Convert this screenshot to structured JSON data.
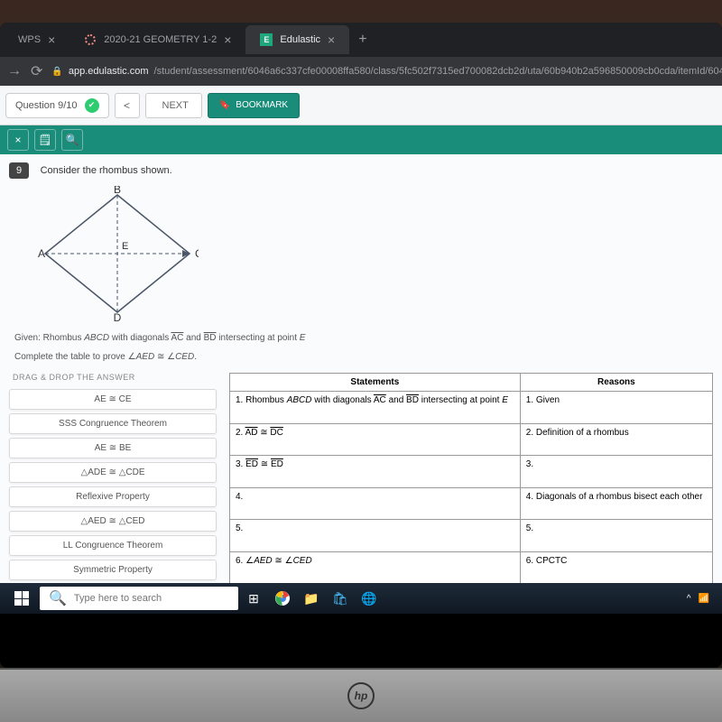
{
  "browser": {
    "tabs": [
      {
        "label": "WPS",
        "active": false
      },
      {
        "label": "2020-21 GEOMETRY 1-2",
        "active": false,
        "favicon": "red-circle"
      },
      {
        "label": "Edulastic",
        "active": true,
        "favicon": "e-green"
      }
    ],
    "url_domain": "app.edulastic.com",
    "url_path": "/student/assessment/6046a6c337cfe00008ffa580/class/5fc502f7315ed700082dcb2d/uta/60b940b2a596850009cb0cda/itemId/6046a6c4"
  },
  "toolbar": {
    "question_counter": "Question 9/10",
    "badge": "①",
    "prev": "<",
    "next_label": "NEXT",
    "bookmark_label": "BOOKMARK",
    "calculator_icon": "calculator-icon",
    "search_icon": "search-icon",
    "close_icon": "×"
  },
  "question": {
    "number": "9",
    "prompt": "Consider the rhombus shown.",
    "diagram": {
      "type": "rhombus",
      "vertices": {
        "top": "B",
        "right": "C",
        "bottom": "D",
        "left": "A",
        "center": "E"
      },
      "line_color": "#4a5568",
      "dash": "4,3"
    },
    "given_line1_html": "Given: Rhombus <i>ABCD</i> with diagonals <span class='ov'>AC</span> and <span class='ov'>BD</span> intersecting at point <i>E</i>",
    "given_line2_html": "Complete the table to prove ∠<i>AED</i> ≅ ∠<i>CED</i>."
  },
  "drag": {
    "title": "DRAG & DROP THE ANSWER",
    "items": [
      "AE ≅ CE",
      "SSS Congruence Theorem",
      "AE ≅ BE",
      "△ADE ≅ △CDE",
      "Reflexive Property",
      "△AED ≅ △CED",
      "LL Congruence Theorem",
      "Symmetric Property"
    ]
  },
  "proof": {
    "headers": [
      "Statements",
      "Reasons"
    ],
    "rows": [
      {
        "n": "1.",
        "stmt_html": "Rhombus <i>ABCD</i> with diagonals  <span class='ov'>AC</span>  and <span class='ov'>BD</span>  intersecting at point <i>E</i>",
        "reason": "1. Given"
      },
      {
        "n": "2.",
        "stmt_html": " <span class='ov'>AD</span>  ≅  <span class='ov'>DC</span>",
        "reason": "2. Definition of a rhombus"
      },
      {
        "n": "3.",
        "stmt_html": " <span class='ov'>ED</span>  ≅  <span class='ov'>ED</span>",
        "reason": "3."
      },
      {
        "n": "4.",
        "stmt_html": "",
        "reason": "4. Diagonals of a rhombus bisect each other"
      },
      {
        "n": "5.",
        "stmt_html": "",
        "reason": "5."
      },
      {
        "n": "6.",
        "stmt_html": "∠<i>AED</i> ≅ ∠<i>CED</i>",
        "reason": "6. CPCTC"
      }
    ]
  },
  "taskbar": {
    "search_placeholder": "Type here to search"
  },
  "colors": {
    "teal": "#1a8c7a",
    "page_bg": "#fafbfc",
    "tab_bg": "#202124",
    "url_bg": "#35363a"
  }
}
